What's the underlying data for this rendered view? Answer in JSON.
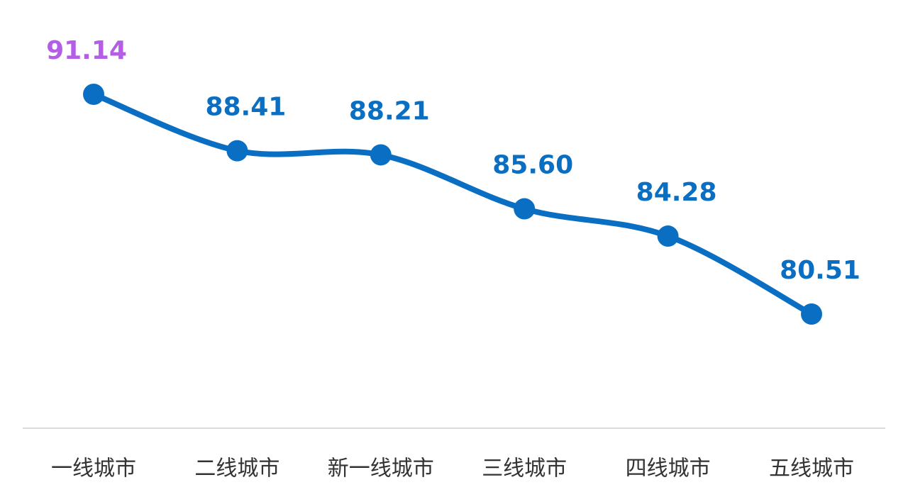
{
  "chart_data": {
    "type": "line",
    "categories": [
      "一线城市",
      "二线城市",
      "新一线城市",
      "三线城市",
      "四线城市",
      "五线城市"
    ],
    "series": [
      {
        "color": "#0a6fc2",
        "values": [
          91.14,
          88.41,
          88.21,
          85.6,
          84.28,
          80.51
        ],
        "value_labels": [
          "91.14",
          "88.41",
          "88.21",
          "85.60",
          "84.28",
          "80.51"
        ],
        "value_label_colors": [
          "#b45ee8",
          "#0a6fc2",
          "#0a6fc2",
          "#0a6fc2",
          "#0a6fc2",
          "#0a6fc2"
        ]
      }
    ],
    "smooth": true
  }
}
